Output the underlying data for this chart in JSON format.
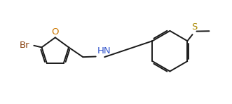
{
  "bg_color": "#ffffff",
  "line_color": "#1a1a1a",
  "atom_colors": {
    "Br": "#8B4513",
    "O": "#cc7700",
    "N": "#3355cc",
    "S": "#aa8800",
    "C": "#1a1a1a"
  },
  "line_width": 1.4,
  "font_size": 9.5,
  "figsize": [
    3.31,
    1.48
  ],
  "dpi": 100
}
